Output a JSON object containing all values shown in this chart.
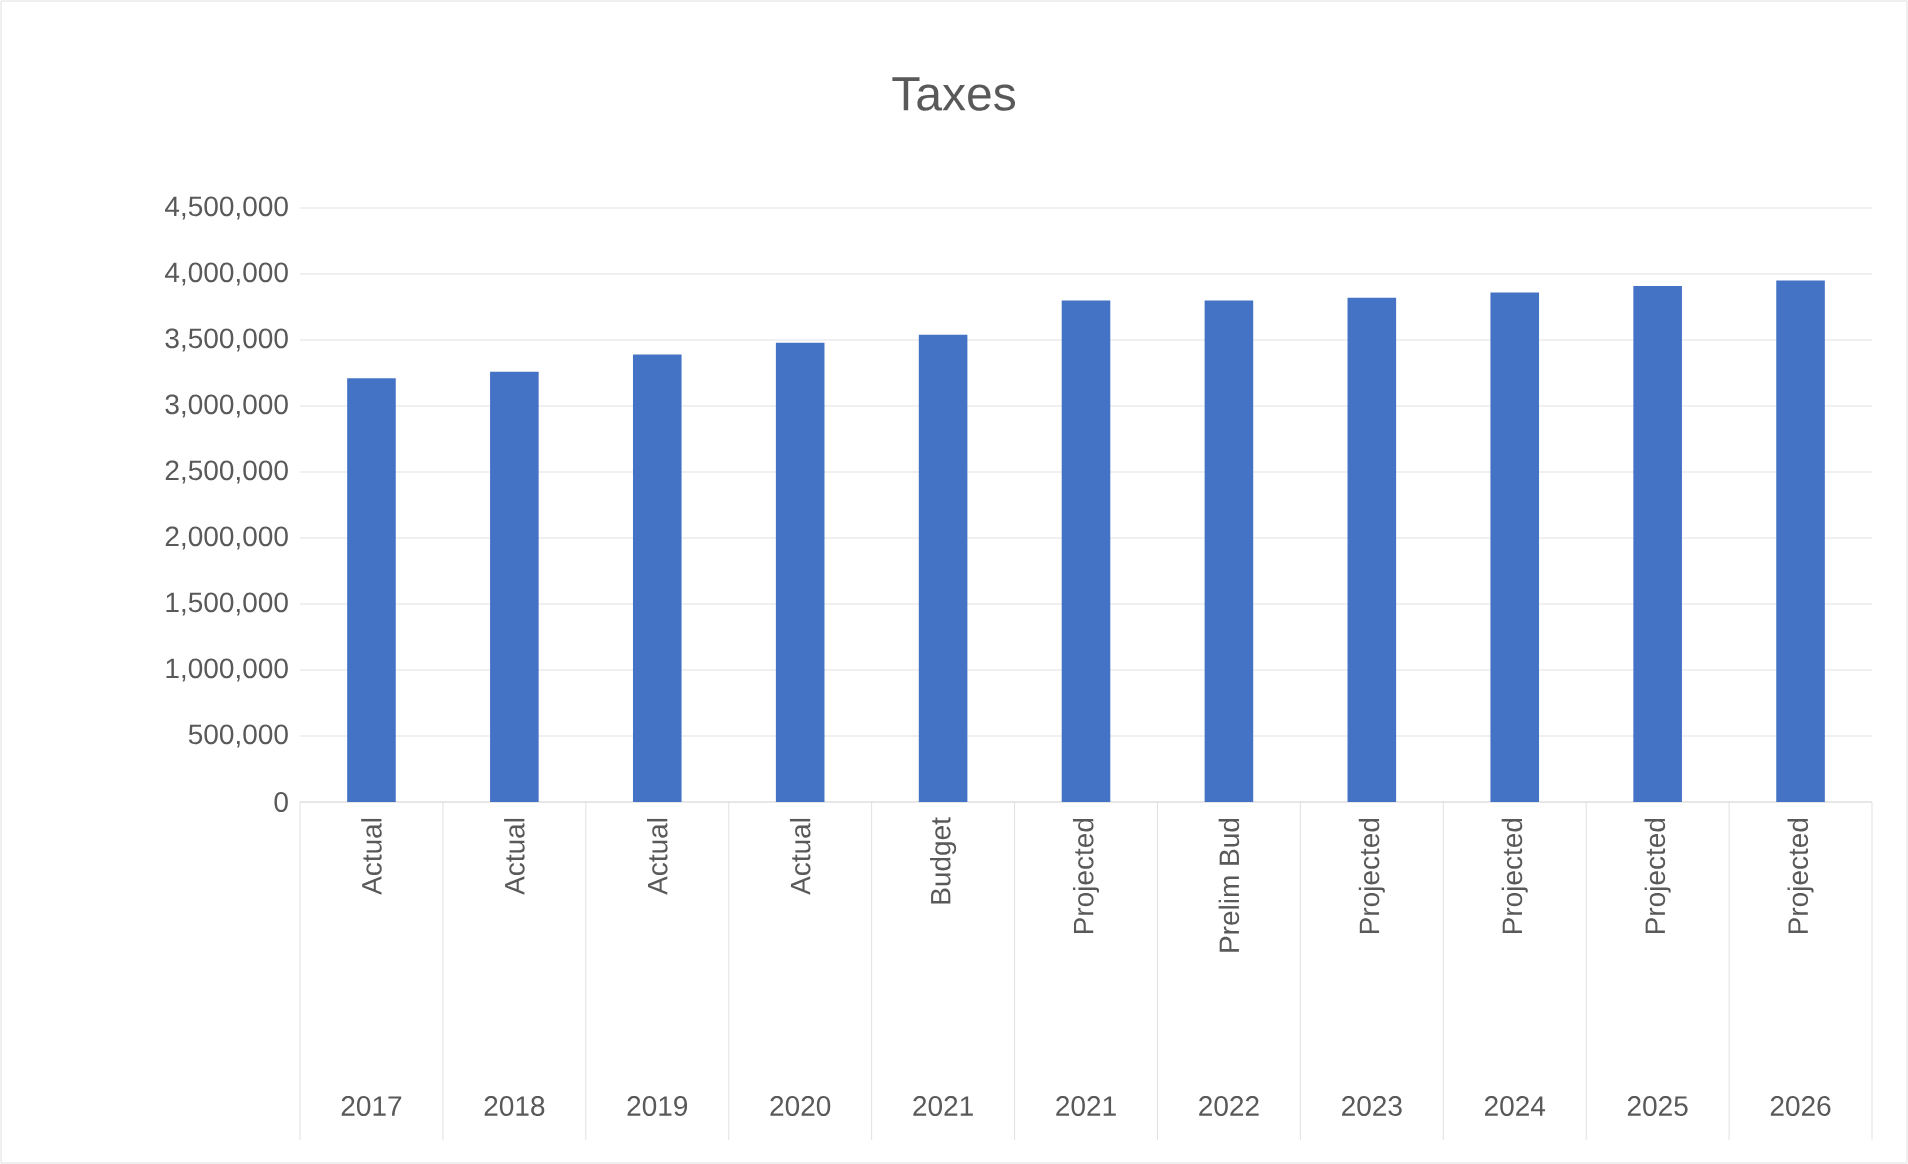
{
  "chart_data": {
    "type": "bar",
    "title": "Taxes",
    "categories": [
      "Actual",
      "Actual",
      "Actual",
      "Actual",
      "Budget",
      "Projected",
      "Prelim Bud",
      "Projected",
      "Projected",
      "Projected",
      "Projected"
    ],
    "values": [
      3210000,
      3260000,
      3390000,
      3480000,
      3540000,
      3800000,
      3800000,
      3820000,
      3860000,
      3910000,
      3950000
    ],
    "color": "#4472c4",
    "ylim": [
      0,
      4500000
    ],
    "yticks": [
      {
        "value": 0,
        "label": "0"
      },
      {
        "value": 500000,
        "label": "500,000"
      },
      {
        "value": 1000000,
        "label": "1,000,000"
      },
      {
        "value": 1500000,
        "label": "1,500,000"
      },
      {
        "value": 2000000,
        "label": "2,000,000"
      },
      {
        "value": 2500000,
        "label": "2,500,000"
      },
      {
        "value": 3000000,
        "label": "3,000,000"
      },
      {
        "value": 3500000,
        "label": "3,500,000"
      },
      {
        "value": 4000000,
        "label": "4,000,000"
      },
      {
        "value": 4500000,
        "label": "4,500,000"
      }
    ],
    "annotations": [
      "2017",
      "2018",
      "2019",
      "2020",
      "2021",
      "2021",
      "2022",
      "2023",
      "2024",
      "2025",
      "2026"
    ],
    "grid": "y"
  }
}
